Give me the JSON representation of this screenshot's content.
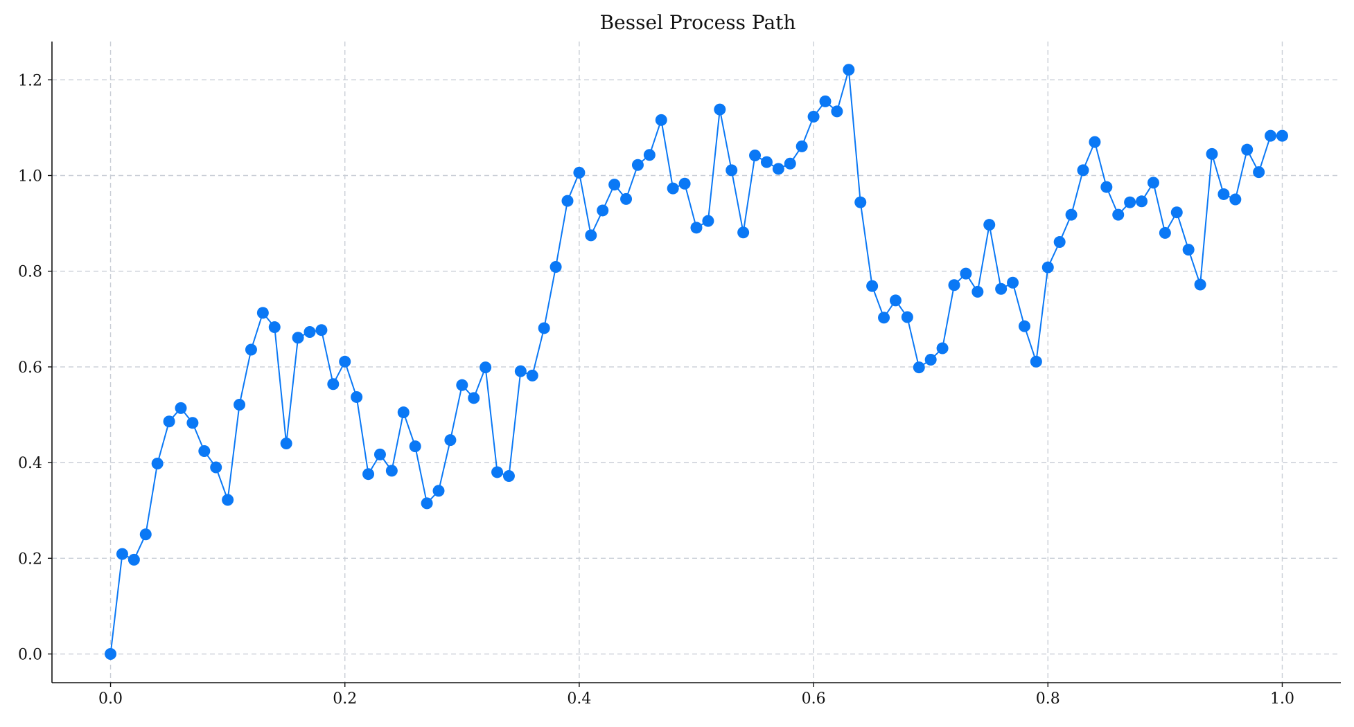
{
  "chart_data": {
    "type": "line",
    "title": "Bessel Process Path",
    "xlabel": "",
    "ylabel": "",
    "xlim": [
      -0.05,
      1.05
    ],
    "ylim": [
      -0.06,
      1.28
    ],
    "x_ticks": [
      0.0,
      0.2,
      0.4,
      0.6,
      0.8,
      1.0
    ],
    "x_tick_labels": [
      "0.0",
      "0.2",
      "0.4",
      "0.6",
      "0.8",
      "1.0"
    ],
    "y_ticks": [
      0.0,
      0.2,
      0.4,
      0.6,
      0.8,
      1.0,
      1.2
    ],
    "y_tick_labels": [
      "0.0",
      "0.2",
      "0.4",
      "0.6",
      "0.8",
      "1.0",
      "1.2"
    ],
    "grid": true,
    "markers": true,
    "series": [
      {
        "color": "#0a78f5",
        "x": [
          0.0,
          0.01,
          0.02,
          0.03,
          0.04,
          0.05,
          0.06,
          0.07,
          0.08,
          0.09,
          0.1,
          0.11,
          0.12,
          0.13,
          0.14,
          0.15,
          0.16,
          0.17,
          0.18,
          0.19,
          0.2,
          0.21,
          0.22,
          0.23,
          0.24,
          0.25,
          0.26,
          0.27,
          0.28,
          0.29,
          0.3,
          0.31,
          0.32,
          0.33,
          0.34,
          0.35,
          0.36,
          0.37,
          0.38,
          0.39,
          0.4,
          0.41,
          0.42,
          0.43,
          0.44,
          0.45,
          0.46,
          0.47,
          0.48,
          0.49,
          0.5,
          0.51,
          0.52,
          0.53,
          0.54,
          0.55,
          0.56,
          0.57,
          0.58,
          0.59,
          0.6,
          0.61,
          0.62,
          0.63,
          0.64,
          0.65,
          0.66,
          0.67,
          0.68,
          0.69,
          0.7,
          0.71,
          0.72,
          0.73,
          0.74,
          0.75,
          0.76,
          0.77,
          0.78,
          0.79,
          0.8,
          0.81,
          0.82,
          0.83,
          0.84,
          0.85,
          0.86,
          0.87,
          0.88,
          0.89,
          0.9,
          0.91,
          0.92,
          0.93,
          0.94,
          0.95,
          0.96,
          0.97,
          0.98,
          0.99,
          1.0
        ],
        "y": [
          0.0,
          0.209,
          0.197,
          0.25,
          0.398,
          0.486,
          0.514,
          0.483,
          0.424,
          0.39,
          0.322,
          0.521,
          0.636,
          0.713,
          0.683,
          0.44,
          0.661,
          0.673,
          0.677,
          0.564,
          0.611,
          0.537,
          0.376,
          0.417,
          0.383,
          0.505,
          0.434,
          0.315,
          0.341,
          0.447,
          0.562,
          0.535,
          0.599,
          0.38,
          0.372,
          0.591,
          0.582,
          0.681,
          0.809,
          0.947,
          1.006,
          0.875,
          0.927,
          0.981,
          0.951,
          1.022,
          1.043,
          1.116,
          0.973,
          0.983,
          0.891,
          0.905,
          1.138,
          1.011,
          0.881,
          1.042,
          1.028,
          1.014,
          1.025,
          1.061,
          1.123,
          1.155,
          1.134,
          1.221,
          0.944,
          0.769,
          0.703,
          0.739,
          0.704,
          0.599,
          0.615,
          0.639,
          0.771,
          0.795,
          0.757,
          0.897,
          0.763,
          0.776,
          0.685,
          0.611,
          0.808,
          0.861,
          0.918,
          1.011,
          1.07,
          0.976,
          0.918,
          0.944,
          0.946,
          0.985,
          0.88,
          0.923,
          0.845,
          0.772,
          1.045,
          0.961,
          0.95,
          1.054,
          1.007,
          1.083,
          1.083
        ]
      }
    ]
  }
}
